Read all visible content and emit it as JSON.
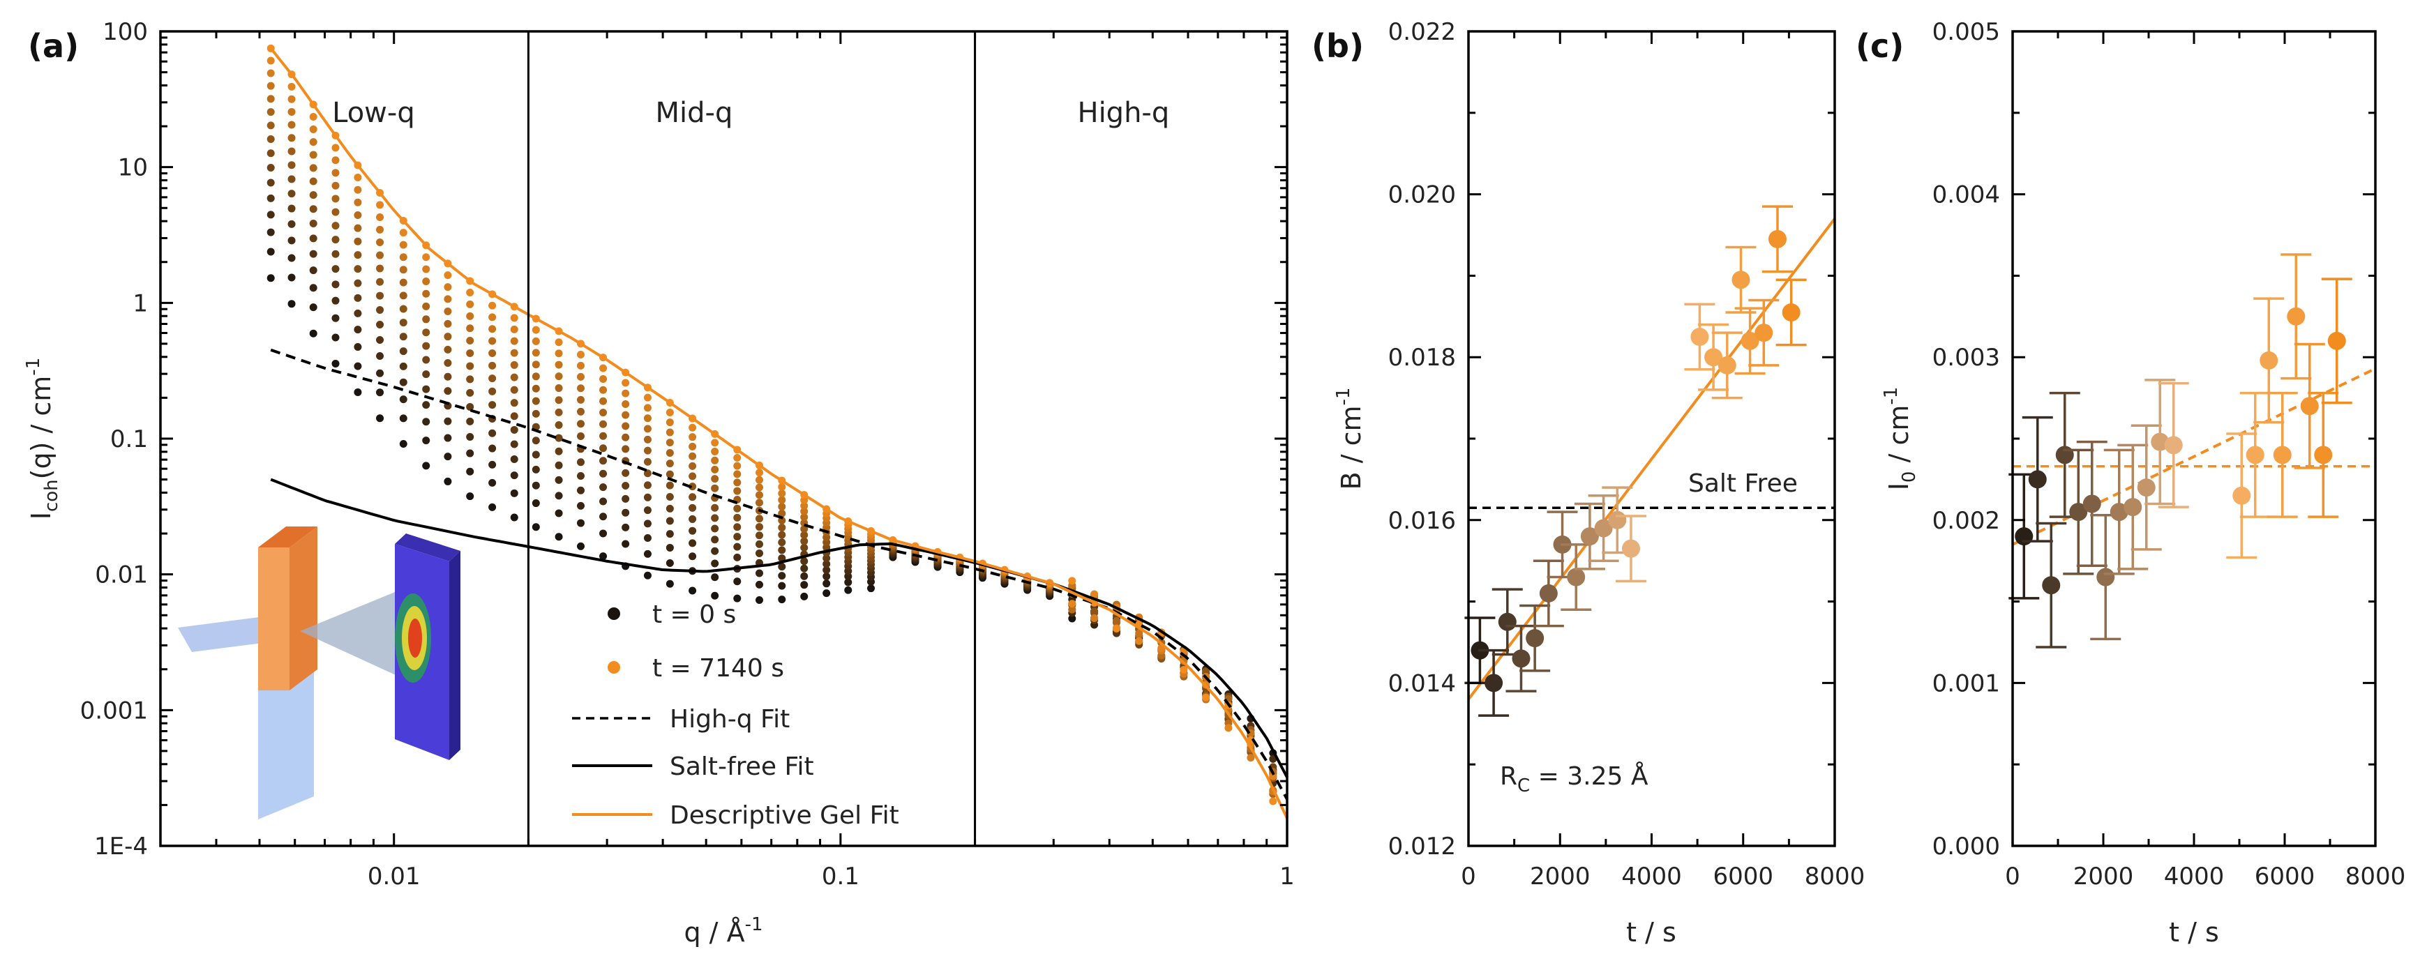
{
  "chart_data": [
    {
      "panel": "(a)",
      "type": "scatter",
      "xscale": "log",
      "yscale": "log",
      "xlim": [
        0.003,
        1
      ],
      "ylim": [
        0.0001,
        100
      ],
      "xlabel": "q / Å",
      "xlabel_sup": "-1",
      "ylabel_main": "I",
      "ylabel_sub": "coh",
      "ylabel_rest": "(q) / cm",
      "ylabel_sup": "-1",
      "xticks": [
        {
          "v": 0.01,
          "label": "0.01"
        },
        {
          "v": 0.1,
          "label": "0.1"
        },
        {
          "v": 1,
          "label": "1"
        }
      ],
      "yticks": [
        {
          "v": 0.0001,
          "label": "1E-4"
        },
        {
          "v": 0.001,
          "label": "0.001"
        },
        {
          "v": 0.01,
          "label": "0.01"
        },
        {
          "v": 0.1,
          "label": "0.1"
        },
        {
          "v": 1,
          "label": "1"
        },
        {
          "v": 10,
          "label": "10"
        },
        {
          "v": 100,
          "label": "100"
        }
      ],
      "regions": [
        {
          "label": "Low-q",
          "x": 0.009
        },
        {
          "label": "Mid-q",
          "x": 0.047
        },
        {
          "label": "High-q",
          "x": 0.43
        }
      ],
      "dividers": [
        0.02,
        0.2
      ],
      "color_start": "#1a1410",
      "color_end": "#f28c1e",
      "series": [
        {
          "name": "t = 0 s",
          "t": 0
        },
        {
          "name": "t = 7140 s",
          "t": 7140
        }
      ],
      "n_frames": 16,
      "q_points": [
        0.0053,
        0.0059,
        0.0066,
        0.0074,
        0.0083,
        0.0093,
        0.0105,
        0.0118,
        0.0132,
        0.0148,
        0.0166,
        0.0186,
        0.0208,
        0.0234,
        0.0262,
        0.0294,
        0.033,
        0.037,
        0.0415,
        0.0466,
        0.0523,
        0.0587,
        0.0658,
        0.0739,
        0.0829,
        0.093,
        0.104,
        0.117,
        0.131,
        0.147,
        0.165,
        0.185,
        0.208,
        0.233,
        0.262,
        0.294,
        0.33,
        0.37,
        0.415,
        0.466,
        0.523,
        0.587,
        0.658,
        0.739,
        0.829,
        0.93
      ],
      "fits": [
        {
          "name": "High-q Fit",
          "style": "dashed",
          "color": "#000000",
          "x": [
            0.0053,
            0.007,
            0.01,
            0.015,
            0.02,
            0.03,
            0.05,
            0.08,
            0.12,
            0.16,
            0.2,
            0.3,
            0.4,
            0.5,
            0.6,
            0.7,
            0.8,
            0.9,
            1.0
          ],
          "y": [
            0.45,
            0.33,
            0.24,
            0.16,
            0.12,
            0.075,
            0.04,
            0.024,
            0.016,
            0.013,
            0.011,
            0.0078,
            0.0056,
            0.0038,
            0.0024,
            0.0014,
            0.00078,
            0.00042,
            0.00022
          ]
        },
        {
          "name": "Salt-free Fit",
          "style": "solid",
          "color": "#000000",
          "x": [
            0.0053,
            0.007,
            0.01,
            0.015,
            0.02,
            0.03,
            0.04,
            0.05,
            0.07,
            0.09,
            0.11,
            0.13,
            0.16,
            0.2,
            0.3,
            0.4,
            0.5,
            0.6,
            0.7,
            0.8,
            0.9,
            1.0
          ],
          "y": [
            0.05,
            0.035,
            0.025,
            0.019,
            0.016,
            0.0125,
            0.0108,
            0.0105,
            0.0118,
            0.0145,
            0.0165,
            0.0168,
            0.0145,
            0.0122,
            0.0085,
            0.006,
            0.0042,
            0.0028,
            0.0018,
            0.0011,
            0.00062,
            0.00032
          ]
        },
        {
          "name": "Descriptive Gel Fit",
          "style": "solid",
          "color": "#f28c1e",
          "x": [
            0.0053,
            0.006,
            0.007,
            0.008,
            0.01,
            0.012,
            0.015,
            0.02,
            0.025,
            0.03,
            0.04,
            0.05,
            0.07,
            0.1,
            0.13,
            0.16,
            0.2,
            0.3,
            0.4,
            0.5,
            0.6,
            0.7,
            0.8,
            0.9,
            1.0
          ],
          "y": [
            75,
            45,
            22,
            12,
            4.8,
            2.5,
            1.4,
            0.82,
            0.55,
            0.38,
            0.2,
            0.12,
            0.055,
            0.026,
            0.018,
            0.015,
            0.0125,
            0.0085,
            0.0055,
            0.0035,
            0.0021,
            0.0012,
            0.00065,
            0.00033,
            0.00016
          ]
        }
      ],
      "inset": "sample-scattering-schematic"
    },
    {
      "panel": "(b)",
      "type": "scatter",
      "xlim": [
        0,
        8000
      ],
      "ylim": [
        0.012,
        0.022
      ],
      "xlabel": "t / s",
      "ylabel": "B / cm",
      "ylabel_sup": "-1",
      "xticks": [
        {
          "v": 0,
          "label": "0"
        },
        {
          "v": 2000,
          "label": "2000"
        },
        {
          "v": 4000,
          "label": "4000"
        },
        {
          "v": 6000,
          "label": "6000"
        },
        {
          "v": 8000,
          "label": "8000"
        }
      ],
      "yticks": [
        {
          "v": 0.012,
          "label": "0.012"
        },
        {
          "v": 0.014,
          "label": "0.014"
        },
        {
          "v": 0.016,
          "label": "0.016"
        },
        {
          "v": 0.018,
          "label": "0.018"
        },
        {
          "v": 0.02,
          "label": "0.020"
        },
        {
          "v": 0.022,
          "label": "0.022"
        }
      ],
      "points": [
        {
          "t": 250,
          "y": 0.0144,
          "err": 0.0004
        },
        {
          "t": 550,
          "y": 0.014,
          "err": 0.0004
        },
        {
          "t": 850,
          "y": 0.01475,
          "err": 0.0004
        },
        {
          "t": 1150,
          "y": 0.0143,
          "err": 0.0004
        },
        {
          "t": 1450,
          "y": 0.01455,
          "err": 0.0004
        },
        {
          "t": 1750,
          "y": 0.0151,
          "err": 0.0004
        },
        {
          "t": 2050,
          "y": 0.0157,
          "err": 0.0004
        },
        {
          "t": 2350,
          "y": 0.0153,
          "err": 0.0004
        },
        {
          "t": 2650,
          "y": 0.0158,
          "err": 0.0004
        },
        {
          "t": 2950,
          "y": 0.0159,
          "err": 0.0004
        },
        {
          "t": 3250,
          "y": 0.016,
          "err": 0.0004
        },
        {
          "t": 3550,
          "y": 0.01565,
          "err": 0.0004
        },
        {
          "t": 5050,
          "y": 0.01825,
          "err": 0.0004
        },
        {
          "t": 5350,
          "y": 0.018,
          "err": 0.0004
        },
        {
          "t": 5650,
          "y": 0.0179,
          "err": 0.0004
        },
        {
          "t": 5950,
          "y": 0.01895,
          "err": 0.0004
        },
        {
          "t": 6150,
          "y": 0.0182,
          "err": 0.0004
        },
        {
          "t": 6450,
          "y": 0.0183,
          "err": 0.0004
        },
        {
          "t": 6750,
          "y": 0.01945,
          "err": 0.0004
        },
        {
          "t": 7050,
          "y": 0.01855,
          "err": 0.0004
        }
      ],
      "fit_line": {
        "x": [
          0,
          8000
        ],
        "y": [
          0.0138,
          0.0197
        ]
      },
      "reference_line": {
        "y": 0.01615,
        "label": "Salt Free"
      },
      "annotation": {
        "main": "R",
        "sub": "C",
        "rest": " = 3.25 Å"
      }
    },
    {
      "panel": "(c)",
      "type": "scatter",
      "xlim": [
        0,
        8000
      ],
      "ylim": [
        0,
        0.005
      ],
      "xlabel": "t / s",
      "ylabel_main": "I",
      "ylabel_sub": "0",
      "ylabel_rest": " / cm",
      "ylabel_sup": "-1",
      "xticks": [
        {
          "v": 0,
          "label": "0"
        },
        {
          "v": 2000,
          "label": "2000"
        },
        {
          "v": 4000,
          "label": "4000"
        },
        {
          "v": 6000,
          "label": "6000"
        },
        {
          "v": 8000,
          "label": "8000"
        }
      ],
      "yticks": [
        {
          "v": 0,
          "label": "0.000"
        },
        {
          "v": 0.001,
          "label": "0.001"
        },
        {
          "v": 0.002,
          "label": "0.002"
        },
        {
          "v": 0.003,
          "label": "0.003"
        },
        {
          "v": 0.004,
          "label": "0.004"
        },
        {
          "v": 0.005,
          "label": "0.005"
        }
      ],
      "points": [
        {
          "t": 250,
          "y": 0.0019,
          "err": 0.00038
        },
        {
          "t": 550,
          "y": 0.00225,
          "err": 0.00038
        },
        {
          "t": 850,
          "y": 0.0016,
          "err": 0.00038
        },
        {
          "t": 1150,
          "y": 0.0024,
          "err": 0.00038
        },
        {
          "t": 1450,
          "y": 0.00205,
          "err": 0.00038
        },
        {
          "t": 1750,
          "y": 0.0021,
          "err": 0.00038
        },
        {
          "t": 2050,
          "y": 0.00165,
          "err": 0.00038
        },
        {
          "t": 2350,
          "y": 0.00205,
          "err": 0.00038
        },
        {
          "t": 2650,
          "y": 0.00208,
          "err": 0.00038
        },
        {
          "t": 2950,
          "y": 0.0022,
          "err": 0.00038
        },
        {
          "t": 3250,
          "y": 0.00248,
          "err": 0.00038
        },
        {
          "t": 3550,
          "y": 0.00246,
          "err": 0.00038
        },
        {
          "t": 5050,
          "y": 0.00215,
          "err": 0.00038
        },
        {
          "t": 5350,
          "y": 0.0024,
          "err": 0.00038
        },
        {
          "t": 5650,
          "y": 0.00298,
          "err": 0.00038
        },
        {
          "t": 5950,
          "y": 0.0024,
          "err": 0.00038
        },
        {
          "t": 6250,
          "y": 0.00325,
          "err": 0.00038
        },
        {
          "t": 6550,
          "y": 0.0027,
          "err": 0.00038
        },
        {
          "t": 6850,
          "y": 0.0024,
          "err": 0.00038
        },
        {
          "t": 7150,
          "y": 0.0031,
          "err": 0.00038
        }
      ],
      "fit_line": {
        "x": [
          0,
          8000
        ],
        "y": [
          0.00185,
          0.00293
        ]
      },
      "mean_line": {
        "y": 0.00233
      }
    }
  ]
}
